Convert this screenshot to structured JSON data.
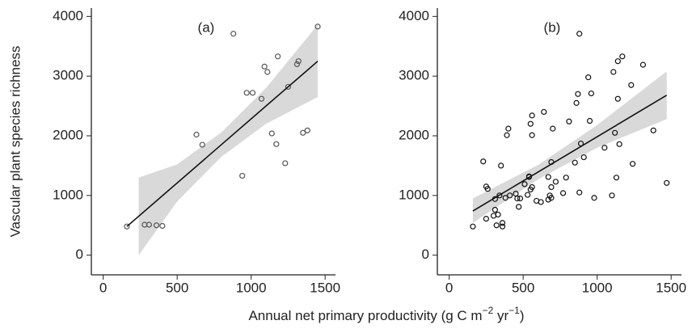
{
  "chart_data": [
    {
      "type": "scatter",
      "title": "(a)",
      "x": [
        160,
        280,
        310,
        360,
        400,
        630,
        670,
        880,
        940,
        970,
        1010,
        1070,
        1090,
        1110,
        1140,
        1170,
        1180,
        1230,
        1250,
        1310,
        1320,
        1350,
        1380,
        1450
      ],
      "y": [
        480,
        510,
        510,
        500,
        490,
        2020,
        1850,
        3710,
        1330,
        2720,
        2720,
        2620,
        3160,
        3070,
        2040,
        1860,
        3330,
        1540,
        2820,
        3200,
        3250,
        2050,
        2090,
        3830
      ],
      "fit": {
        "x": [
          160,
          1450
        ],
        "y": [
          480,
          3250
        ]
      },
      "band": {
        "x": [
          240,
          500,
          800,
          1100,
          1450
        ],
        "lower": [
          0,
          900,
          1650,
          2200,
          2650
        ],
        "upper": [
          1300,
          1520,
          2060,
          2800,
          3860
        ]
      },
      "xlim": [
        -80,
        1570
      ],
      "ylim": [
        -330,
        4140
      ],
      "xticks": [
        0,
        500,
        1000,
        1500
      ],
      "yticks": [
        0,
        1000,
        2000,
        3000,
        4000
      ],
      "point_color": "#555555",
      "band_color": "#d9d9d9",
      "line_color": "#111111"
    },
    {
      "type": "scatter",
      "title": "(b)",
      "x": [
        160,
        230,
        250,
        260,
        250,
        300,
        310,
        310,
        320,
        330,
        340,
        350,
        360,
        360,
        380,
        390,
        400,
        410,
        450,
        460,
        470,
        480,
        510,
        530,
        540,
        540,
        550,
        550,
        560,
        560,
        560,
        590,
        620,
        640,
        670,
        670,
        680,
        690,
        690,
        690,
        700,
        720,
        770,
        790,
        810,
        850,
        860,
        870,
        880,
        880,
        890,
        910,
        940,
        950,
        960,
        980,
        1050,
        1100,
        1110,
        1120,
        1130,
        1140,
        1140,
        1150,
        1170,
        1230,
        1240,
        1310,
        1380,
        1470
      ],
      "y": [
        480,
        1570,
        1150,
        1110,
        610,
        660,
        940,
        760,
        500,
        680,
        1000,
        1500,
        480,
        540,
        960,
        2010,
        2120,
        1000,
        1030,
        950,
        810,
        950,
        1190,
        1010,
        1320,
        1310,
        1100,
        2200,
        2010,
        2340,
        1140,
        910,
        890,
        2400,
        930,
        1310,
        1000,
        1560,
        1140,
        960,
        2120,
        1230,
        1040,
        1300,
        2240,
        1550,
        2550,
        2700,
        1050,
        3710,
        1870,
        1640,
        2980,
        2250,
        2710,
        960,
        1800,
        1000,
        3070,
        2050,
        1300,
        3250,
        2620,
        1860,
        3330,
        2850,
        1530,
        3190,
        2090,
        1210
      ],
      "fit": {
        "x": [
          160,
          1470
        ],
        "y": [
          740,
          2680
        ]
      },
      "band": {
        "x": [
          160,
          600,
          1000,
          1470
        ],
        "lower": [
          540,
          1270,
          1800,
          2280
        ],
        "upper": [
          950,
          1510,
          2180,
          3080
        ]
      },
      "xlim": [
        -80,
        1570
      ],
      "ylim": [
        -330,
        4140
      ],
      "xticks": [
        0,
        500,
        1000,
        1500
      ],
      "yticks": [
        0,
        1000,
        2000,
        3000,
        4000
      ],
      "point_color": "#111111",
      "band_color": "#d9d9d9",
      "line_color": "#111111"
    }
  ],
  "ylabel": "Vascular plant species richness",
  "xlabel": [
    "Annual net primary productivity (g C m",
    "−2",
    " yr",
    "−1",
    ")"
  ]
}
